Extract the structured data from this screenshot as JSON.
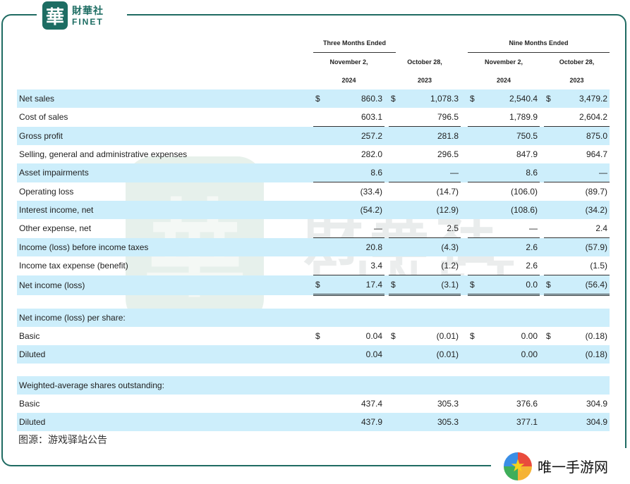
{
  "logo": {
    "mark": "華",
    "cn": "財華社",
    "en": "FINET"
  },
  "watermark": {
    "mark": "華",
    "cn": "財華社",
    "en": "FINET"
  },
  "header": {
    "group1": "Three Months Ended",
    "group2": "Nine Months Ended",
    "cols": [
      {
        "line1": "November 2,",
        "line2": "2024"
      },
      {
        "line1": "October 28,",
        "line2": "2023"
      },
      {
        "line1": "November 2,",
        "line2": "2024"
      },
      {
        "line1": "October 28,",
        "line2": "2023"
      }
    ]
  },
  "rows": {
    "net_sales": {
      "label": "Net sales",
      "cur": "$",
      "v": [
        "860.3",
        "1,078.3",
        "2,540.4",
        "3,479.2"
      ]
    },
    "cost_of_sales": {
      "label": "Cost of sales",
      "v": [
        "603.1",
        "796.5",
        "1,789.9",
        "2,604.2"
      ]
    },
    "gross_profit": {
      "label": "Gross profit",
      "v": [
        "257.2",
        "281.8",
        "750.5",
        "875.0"
      ]
    },
    "sga": {
      "label": "Selling, general and administrative expenses",
      "v": [
        "282.0",
        "296.5",
        "847.9",
        "964.7"
      ]
    },
    "impairments": {
      "label": "Asset impairments",
      "v": [
        "8.6",
        "—",
        "8.6",
        "—"
      ]
    },
    "operating_loss": {
      "label": "Operating loss",
      "v": [
        "(33.4)",
        "(14.7)",
        "(106.0)",
        "(89.7)"
      ]
    },
    "interest_income": {
      "label": "Interest income, net",
      "v": [
        "(54.2)",
        "(12.9)",
        "(108.6)",
        "(34.2)"
      ]
    },
    "other_expense": {
      "label": "Other expense, net",
      "v": [
        "—",
        "2.5",
        "—",
        "2.4"
      ]
    },
    "income_before_tax": {
      "label": "Income (loss) before income taxes",
      "v": [
        "20.8",
        "(4.3)",
        "2.6",
        "(57.9)"
      ]
    },
    "tax": {
      "label": "Income tax expense (benefit)",
      "v": [
        "3.4",
        "(1.2)",
        "2.6",
        "(1.5)"
      ]
    },
    "net_income": {
      "label": "Net income (loss)",
      "cur": "$",
      "v": [
        "17.4",
        "(3.1)",
        "0.0",
        "(56.4)"
      ]
    }
  },
  "per_share": {
    "title": "Net income (loss) per share:",
    "basic": {
      "label": "Basic",
      "cur": "$",
      "v": [
        "0.04",
        "(0.01)",
        "0.00",
        "(0.18)"
      ]
    },
    "diluted": {
      "label": "Diluted",
      "v": [
        "0.04",
        "(0.01)",
        "0.00",
        "(0.18)"
      ]
    }
  },
  "shares": {
    "title": "Weighted-average shares outstanding:",
    "basic": {
      "label": "Basic",
      "v": [
        "437.4",
        "305.3",
        "376.6",
        "304.9"
      ]
    },
    "diluted": {
      "label": "Diluted",
      "v": [
        "437.9",
        "305.3",
        "377.1",
        "304.9"
      ]
    }
  },
  "source": "图源：游戏驿站公告",
  "brand": {
    "icon": "star-icon",
    "text": "唯一手游网"
  },
  "colors": {
    "frame": "#1f6b62",
    "highlight": "#cdeefb"
  }
}
